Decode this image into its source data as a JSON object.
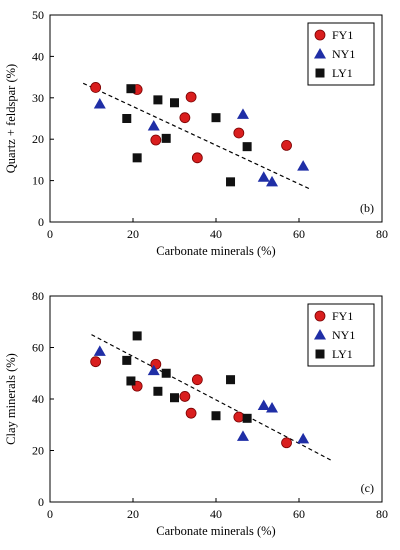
{
  "chart_data": [
    {
      "type": "scatter",
      "panel_label": "(b)",
      "xlabel": "Carbonate minerals (%)",
      "ylabel": "Quartz + feldspar (%)",
      "xlim": [
        0,
        80
      ],
      "ylim": [
        0,
        50
      ],
      "xticks": [
        "0",
        "20",
        "40",
        "60",
        "80"
      ],
      "yticks": [
        "0",
        "10",
        "20",
        "30",
        "40",
        "50"
      ],
      "grid": false,
      "legend": "top-right",
      "series": [
        {
          "name": "FY1",
          "marker": "circle",
          "color": "#d91e1e",
          "points": [
            [
              11,
              32.5
            ],
            [
              21,
              32
            ],
            [
              25.5,
              19.8
            ],
            [
              32.5,
              25.2
            ],
            [
              34,
              30.2
            ],
            [
              35.5,
              15.5
            ],
            [
              45.5,
              21.5
            ],
            [
              57,
              18.5
            ]
          ]
        },
        {
          "name": "NY1",
          "marker": "triangle",
          "color": "#1f2ea6",
          "points": [
            [
              12,
              28.5
            ],
            [
              25,
              23.2
            ],
            [
              46.5,
              26
            ],
            [
              51.5,
              10.8
            ],
            [
              53.5,
              9.7
            ],
            [
              61,
              13.5
            ]
          ]
        },
        {
          "name": "LY1",
          "marker": "square",
          "color": "#111111",
          "points": [
            [
              18.5,
              25
            ],
            [
              19.5,
              32.2
            ],
            [
              21,
              15.5
            ],
            [
              26,
              29.5
            ],
            [
              28,
              20.2
            ],
            [
              30,
              28.8
            ],
            [
              40,
              25.2
            ],
            [
              43.5,
              9.7
            ],
            [
              47.5,
              18.2
            ]
          ]
        }
      ],
      "trendline": {
        "style": "dashed",
        "x": [
          8,
          63
        ],
        "y": [
          33.5,
          7.8
        ]
      }
    },
    {
      "type": "scatter",
      "panel_label": "(c)",
      "xlabel": "Carbonate minerals (%)",
      "ylabel": "Clay minerals (%)",
      "xlim": [
        0,
        80
      ],
      "ylim": [
        0,
        80
      ],
      "xticks": [
        "0",
        "20",
        "40",
        "60",
        "80"
      ],
      "yticks": [
        "0",
        "20",
        "40",
        "60",
        "80"
      ],
      "grid": false,
      "legend": "top-right",
      "series": [
        {
          "name": "FY1",
          "marker": "circle",
          "color": "#d91e1e",
          "points": [
            [
              11,
              54.5
            ],
            [
              21,
              45
            ],
            [
              25.5,
              53.5
            ],
            [
              32.5,
              41
            ],
            [
              34,
              34.5
            ],
            [
              35.5,
              47.5
            ],
            [
              45.5,
              33
            ],
            [
              57,
              23
            ]
          ]
        },
        {
          "name": "NY1",
          "marker": "triangle",
          "color": "#1f2ea6",
          "points": [
            [
              12,
              58.5
            ],
            [
              25,
              51
            ],
            [
              46.5,
              25.5
            ],
            [
              51.5,
              37.5
            ],
            [
              53.5,
              36.5
            ],
            [
              61,
              24.5
            ]
          ]
        },
        {
          "name": "LY1",
          "marker": "square",
          "color": "#111111",
          "points": [
            [
              18.5,
              55
            ],
            [
              19.5,
              47
            ],
            [
              21,
              64.5
            ],
            [
              26,
              43
            ],
            [
              28,
              50
            ],
            [
              30,
              40.5
            ],
            [
              40,
              33.5
            ],
            [
              43.5,
              47.5
            ],
            [
              47.5,
              32.5
            ]
          ]
        }
      ],
      "trendline": {
        "style": "dashed",
        "x": [
          10,
          68
        ],
        "y": [
          65,
          16
        ]
      }
    }
  ]
}
